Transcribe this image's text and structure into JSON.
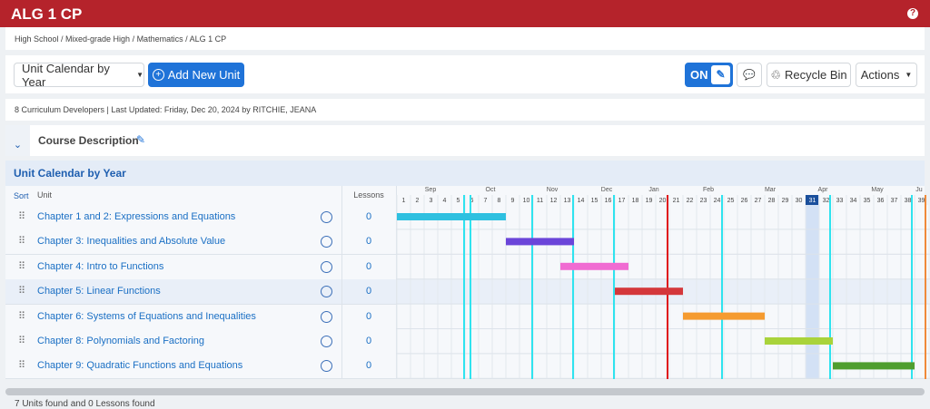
{
  "header": {
    "title": "ALG 1 CP",
    "help": "?"
  },
  "breadcrumb": "High School / Mixed-grade High / Mathematics / ALG 1 CP",
  "toolbar": {
    "view": "Unit Calendar by Year",
    "add": "Add New Unit",
    "toggle": "ON",
    "recycle": "Recycle Bin",
    "actions": "Actions"
  },
  "info": "8 Curriculum Developers | Last Updated: Friday, Dec 20, 2024 by RITCHIE, JEANA",
  "course_description": "Course Description",
  "calendar": {
    "title": "Unit Calendar by Year",
    "columns": {
      "sort": "Sort",
      "unit": "Unit",
      "lessons": "Lessons"
    },
    "months": [
      "Sep",
      "Oct",
      "Nov",
      "Dec",
      "Jan",
      "Feb",
      "Mar",
      "Apr",
      "May",
      "Ju"
    ],
    "weeks": [
      1,
      2,
      3,
      4,
      5,
      6,
      7,
      8,
      9,
      10,
      11,
      12,
      13,
      14,
      15,
      16,
      17,
      18,
      19,
      20,
      21,
      22,
      23,
      24,
      25,
      26,
      27,
      28,
      29,
      30,
      31,
      32,
      33,
      34,
      35,
      36,
      37,
      38,
      39
    ],
    "current_week": 31,
    "units": [
      {
        "name": "Chapter 1 and 2: Expressions and Equations",
        "lessons": 0,
        "weeks": [
          1,
          8
        ],
        "color": "#2ec0e0"
      },
      {
        "name": "Chapter 3: Inequalities and Absolute Value",
        "lessons": 0,
        "weeks": [
          9,
          13
        ],
        "color": "#6b45d9"
      },
      {
        "name": "Chapter 4: Intro to Functions",
        "lessons": 0,
        "weeks": [
          13,
          17
        ],
        "color": "#f06cd2"
      },
      {
        "name": "Chapter 5: Linear Functions",
        "lessons": 0,
        "weeks": [
          17,
          21
        ],
        "color": "#d4373b"
      },
      {
        "name": "Chapter 6: Systems of Equations and Inequalities",
        "lessons": 0,
        "weeks": [
          22,
          27
        ],
        "color": "#f59b30"
      },
      {
        "name": "Chapter 8: Polynomials and Factoring",
        "lessons": 0,
        "weeks": [
          28,
          32
        ],
        "color": "#a9d33b"
      },
      {
        "name": "Chapter 9: Quadratic Functions and Equations",
        "lessons": 0,
        "weeks": [
          33,
          38
        ],
        "color": "#4f9e2f"
      }
    ]
  },
  "footer": "7 Units found and 0 Lessons found"
}
